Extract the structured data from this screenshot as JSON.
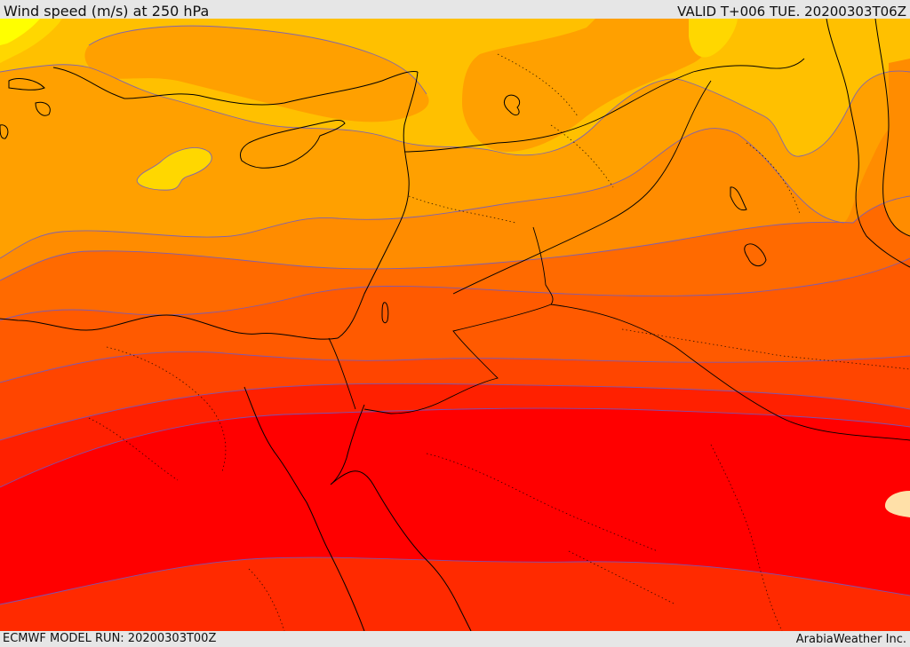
{
  "header": {
    "title": "Wind speed (m/s) at 250 hPa",
    "valid_time": "VALID T+006 TUE. 20200303T06Z"
  },
  "footer": {
    "model_run": "ECMWF MODEL RUN: 20200303T00Z",
    "provider": "ArabiaWeather Inc."
  },
  "map": {
    "variable": "wind speed",
    "level": "250 hPa",
    "palette": {
      "lightest_yellow": "#ffff00",
      "yellow": "#ffd700",
      "amber": "#ffc000",
      "light_orange": "#ffa000",
      "orange": "#ff8c00",
      "dark_orange": "#ff6a00",
      "red_orange": "#ff4500",
      "orange_red": "#ff2a00",
      "red": "#ff0000",
      "pale_peach": "#ffe0a8"
    },
    "line_colors": {
      "contour": "#6a5acd",
      "coastline": "#000000",
      "border": "#000000"
    }
  }
}
